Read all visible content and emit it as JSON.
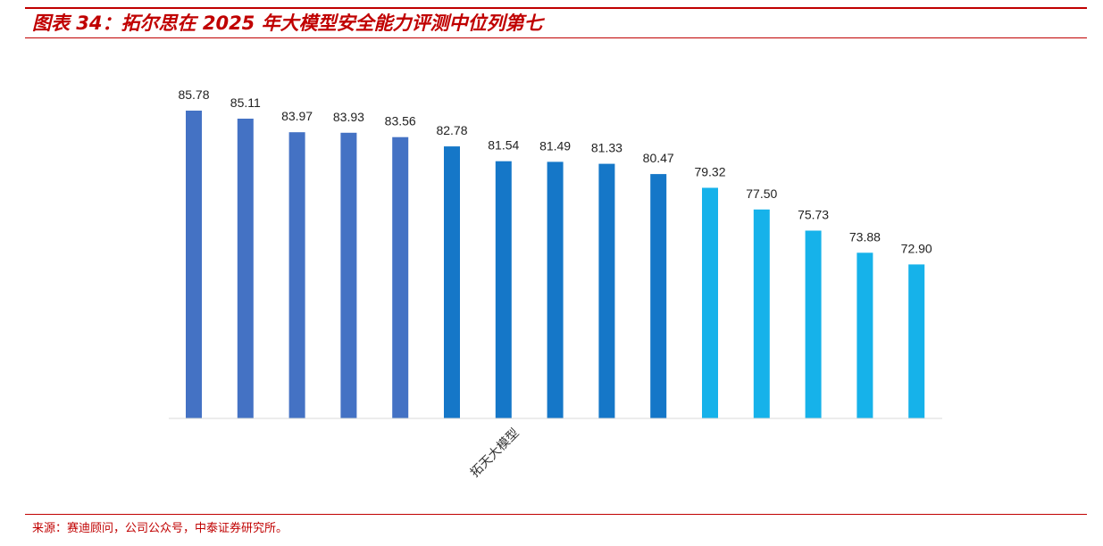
{
  "header": {
    "title": "图表 34：拓尔思在 2025 年大模型安全能力评测中位列第七"
  },
  "chart_data": {
    "type": "bar",
    "title": "",
    "xlabel": "",
    "ylabel": "",
    "ylim": [
      60,
      88
    ],
    "grid": false,
    "legend": "none",
    "categories": [
      "",
      "",
      "",
      "",
      "",
      "",
      "",
      "",
      "",
      "",
      "",
      "",
      "",
      "",
      ""
    ],
    "highlight_label": "拓天大模型",
    "highlight_index": 6,
    "values": [
      85.78,
      85.11,
      83.97,
      83.93,
      83.56,
      82.78,
      81.54,
      81.49,
      81.33,
      80.47,
      79.32,
      77.5,
      75.73,
      73.88,
      72.9
    ],
    "value_labels": [
      "85.78",
      "85.11",
      "83.97",
      "83.93",
      "83.56",
      "82.78",
      "81.54",
      "81.49",
      "81.33",
      "80.47",
      "79.32",
      "77.50",
      "75.73",
      "73.88",
      "72.90"
    ],
    "colors": [
      "#4472c4",
      "#4472c4",
      "#4472c4",
      "#4472c4",
      "#4472c4",
      "#1577c8",
      "#1577c8",
      "#1577c8",
      "#1577c8",
      "#1577c8",
      "#16b2ea",
      "#16b2ea",
      "#16b2ea",
      "#16b2ea",
      "#16b2ea"
    ]
  },
  "footer": {
    "source": "来源：赛迪顾问，公司公众号，中泰证券研究所。"
  }
}
